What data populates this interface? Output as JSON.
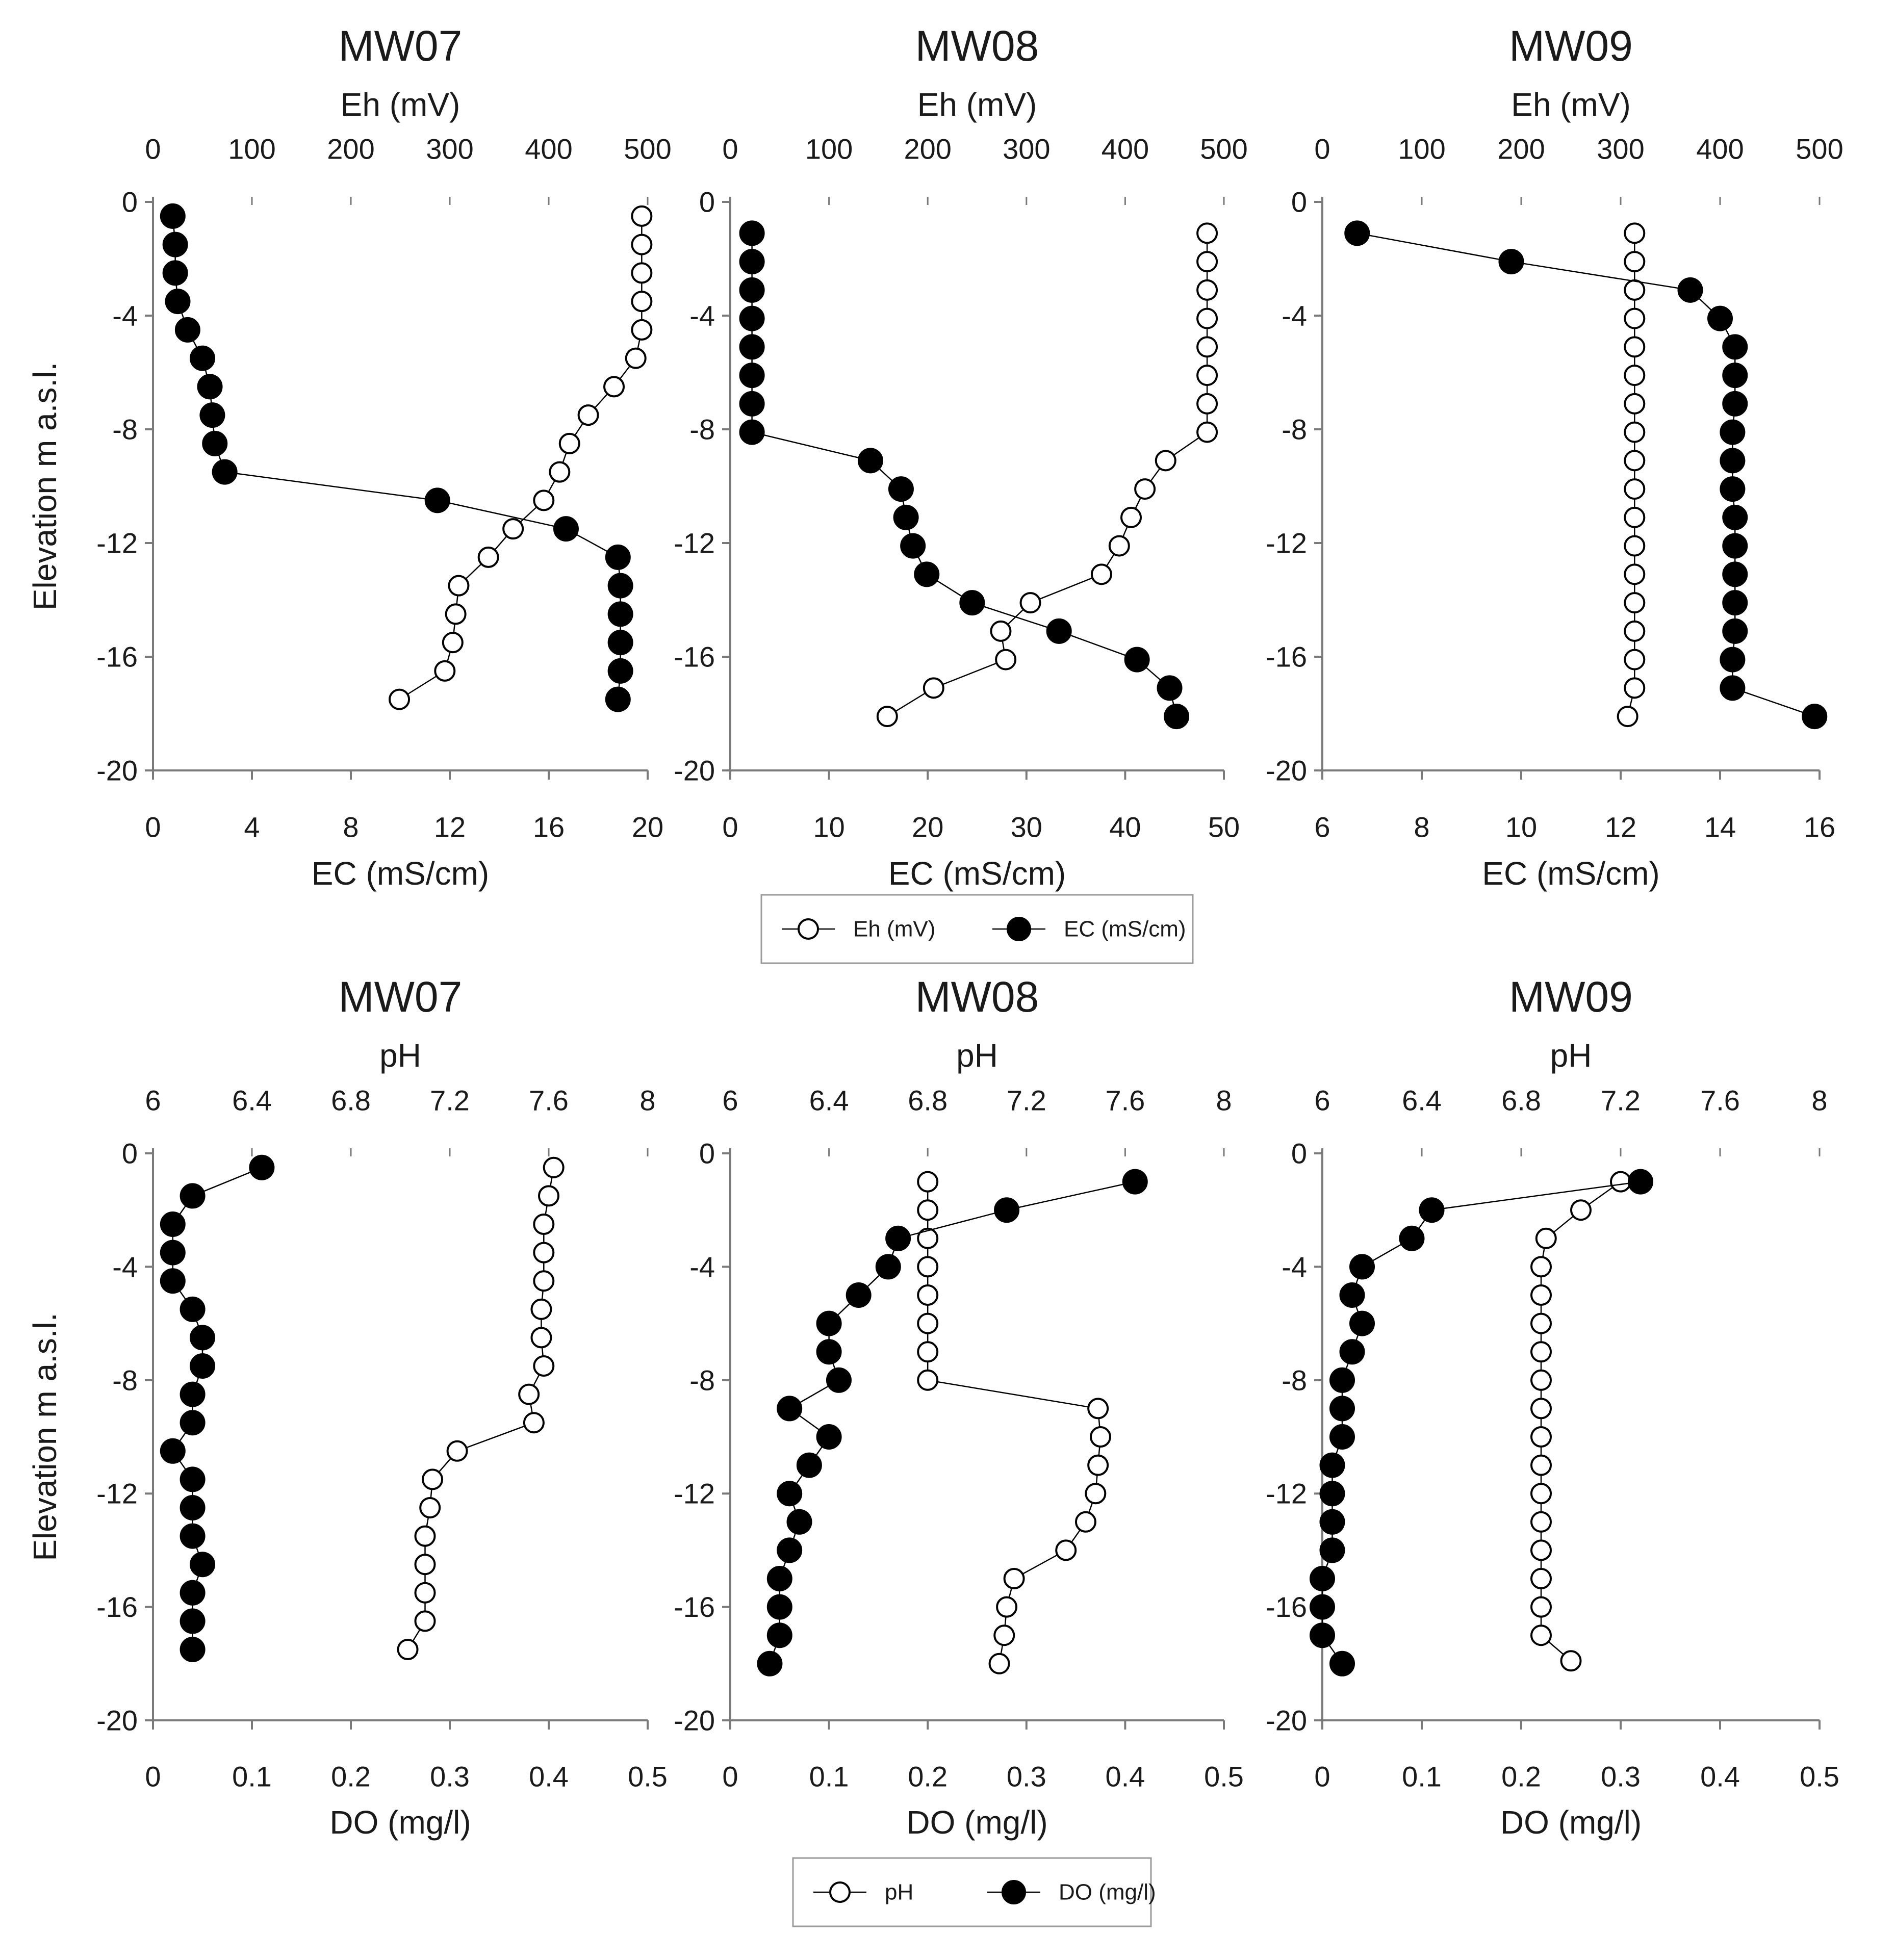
{
  "y_axis_label": "Elevation m a.s.l.",
  "legends": [
    {
      "entries": [
        "Eh (mV)",
        "EC (mS/cm)"
      ]
    },
    {
      "entries": [
        "pH",
        "DO (mg/l)"
      ]
    }
  ],
  "chart_data": [
    {
      "type": "scatter",
      "title": "MW07",
      "row": 1,
      "col": 1,
      "ylabel": "Elevation m a.s.l.",
      "ylim": [
        -20,
        0
      ],
      "yticks": [
        0,
        -4,
        -8,
        -12,
        -16,
        -20
      ],
      "grid": false,
      "top_axis": {
        "label": "Eh (mV)",
        "range": [
          0,
          500
        ],
        "ticks": [
          0,
          100,
          200,
          300,
          400,
          500
        ]
      },
      "bottom_axis": {
        "label": "EC (mS/cm)",
        "range": [
          0,
          20
        ],
        "ticks": [
          0,
          4,
          8,
          12,
          16,
          20
        ]
      },
      "series": [
        {
          "name": "Eh (mV)",
          "axis": "top",
          "marker": "open-circle",
          "x": [
            494,
            494,
            494,
            494,
            494,
            488,
            466,
            440,
            421,
            411,
            395,
            364,
            339,
            309,
            306,
            303,
            295,
            249
          ],
          "y": [
            -0.5,
            -1.5,
            -2.5,
            -3.5,
            -4.5,
            -5.5,
            -6.5,
            -7.5,
            -8.5,
            -9.5,
            -10.5,
            -11.5,
            -12.5,
            -13.5,
            -14.5,
            -15.5,
            -16.5,
            -17.5
          ]
        },
        {
          "name": "EC (mS/cm)",
          "axis": "bottom",
          "marker": "filled-circle",
          "x": [
            0.8,
            0.9,
            0.9,
            1.0,
            1.4,
            2.0,
            2.3,
            2.4,
            2.5,
            2.9,
            11.5,
            16.7,
            18.8,
            18.9,
            18.9,
            18.9,
            18.9,
            18.8
          ],
          "y": [
            -0.5,
            -1.5,
            -2.5,
            -3.5,
            -4.5,
            -5.5,
            -6.5,
            -7.5,
            -8.5,
            -9.5,
            -10.5,
            -11.5,
            -12.5,
            -13.5,
            -14.5,
            -15.5,
            -16.5,
            -17.5
          ]
        }
      ]
    },
    {
      "type": "scatter",
      "title": "MW08",
      "row": 1,
      "col": 2,
      "ylabel": "",
      "ylim": [
        -20,
        0
      ],
      "yticks": [
        0,
        -4,
        -8,
        -12,
        -16,
        -20
      ],
      "grid": false,
      "top_axis": {
        "label": "Eh (mV)",
        "range": [
          0,
          500
        ],
        "ticks": [
          0,
          100,
          200,
          300,
          400,
          500
        ]
      },
      "bottom_axis": {
        "label": "EC (mS/cm)",
        "range": [
          0,
          50
        ],
        "ticks": [
          0,
          10,
          20,
          30,
          40,
          50
        ]
      },
      "series": [
        {
          "name": "Eh (mV)",
          "axis": "top",
          "marker": "open-circle",
          "x": [
            483,
            483,
            483,
            483,
            483,
            483,
            483,
            483,
            441,
            420,
            406,
            394,
            376,
            304,
            274,
            279,
            206,
            159
          ],
          "y": [
            -1.1,
            -2.1,
            -3.1,
            -4.1,
            -5.1,
            -6.1,
            -7.1,
            -8.1,
            -9.1,
            -10.1,
            -11.1,
            -12.1,
            -13.1,
            -14.1,
            -15.1,
            -16.1,
            -17.1,
            -18.1
          ]
        },
        {
          "name": "EC (mS/cm)",
          "axis": "bottom",
          "marker": "filled-circle",
          "x": [
            2.2,
            2.2,
            2.2,
            2.2,
            2.2,
            2.2,
            2.2,
            2.2,
            14.2,
            17.3,
            17.8,
            18.5,
            19.9,
            24.5,
            33.3,
            41.2,
            44.5,
            45.2
          ],
          "y": [
            -1.1,
            -2.1,
            -3.1,
            -4.1,
            -5.1,
            -6.1,
            -7.1,
            -8.1,
            -9.1,
            -10.1,
            -11.1,
            -12.1,
            -13.1,
            -14.1,
            -15.1,
            -16.1,
            -17.1,
            -18.1
          ]
        }
      ]
    },
    {
      "type": "scatter",
      "title": "MW09",
      "row": 1,
      "col": 3,
      "ylabel": "",
      "ylim": [
        -20,
        0
      ],
      "yticks": [
        0,
        -4,
        -8,
        -12,
        -16,
        -20
      ],
      "grid": false,
      "top_axis": {
        "label": "Eh (mV)",
        "range": [
          0,
          500
        ],
        "ticks": [
          0,
          100,
          200,
          300,
          400,
          500
        ]
      },
      "bottom_axis": {
        "label": "EC (mS/cm)",
        "range": [
          6,
          16
        ],
        "ticks": [
          6,
          8,
          10,
          12,
          14,
          16
        ]
      },
      "series": [
        {
          "name": "Eh (mV)",
          "axis": "top",
          "marker": "open-circle",
          "x": [
            314,
            314,
            314,
            314,
            314,
            314,
            314,
            314,
            314,
            314,
            314,
            314,
            314,
            314,
            314,
            314,
            314,
            307
          ],
          "y": [
            -1.1,
            -2.1,
            -3.1,
            -4.1,
            -5.1,
            -6.1,
            -7.1,
            -8.1,
            -9.1,
            -10.1,
            -11.1,
            -12.1,
            -13.1,
            -14.1,
            -15.1,
            -16.1,
            -17.1,
            -18.1
          ]
        },
        {
          "name": "EC (mS/cm)",
          "axis": "bottom",
          "marker": "filled-circle",
          "x": [
            6.7,
            9.8,
            13.4,
            14.0,
            14.3,
            14.3,
            14.3,
            14.25,
            14.25,
            14.25,
            14.3,
            14.3,
            14.3,
            14.3,
            14.3,
            14.25,
            14.25,
            15.9
          ],
          "y": [
            -1.1,
            -2.1,
            -3.1,
            -4.1,
            -5.1,
            -6.1,
            -7.1,
            -8.1,
            -9.1,
            -10.1,
            -11.1,
            -12.1,
            -13.1,
            -14.1,
            -15.1,
            -16.1,
            -17.1,
            -18.1
          ]
        }
      ]
    },
    {
      "type": "scatter",
      "title": "MW07",
      "row": 2,
      "col": 1,
      "ylabel": "Elevation m a.s.l.",
      "ylim": [
        -20,
        0
      ],
      "yticks": [
        0,
        -4,
        -8,
        -12,
        -16,
        -20
      ],
      "grid": false,
      "top_axis": {
        "label": "pH",
        "range": [
          6,
          8
        ],
        "ticks": [
          "6",
          "6.4",
          "6.8",
          "7.2",
          "7.6",
          "8"
        ],
        "tick_values": [
          6,
          6.4,
          6.8,
          7.2,
          7.6,
          8
        ]
      },
      "bottom_axis": {
        "label": "DO (mg/l)",
        "range": [
          0,
          0.5
        ],
        "ticks": [
          "0",
          "0.1",
          "0.2",
          "0.3",
          "0.4",
          "0.5"
        ],
        "tick_values": [
          0,
          0.1,
          0.2,
          0.3,
          0.4,
          0.5
        ]
      },
      "series": [
        {
          "name": "pH",
          "axis": "top",
          "marker": "open-circle",
          "x": [
            7.62,
            7.6,
            7.58,
            7.58,
            7.58,
            7.57,
            7.57,
            7.58,
            7.52,
            7.54,
            7.23,
            7.13,
            7.12,
            7.1,
            7.1,
            7.1,
            7.1,
            7.03
          ],
          "y": [
            -0.5,
            -1.5,
            -2.5,
            -3.5,
            -4.5,
            -5.5,
            -6.5,
            -7.5,
            -8.5,
            -9.5,
            -10.5,
            -11.5,
            -12.5,
            -13.5,
            -14.5,
            -15.5,
            -16.5,
            -17.5
          ]
        },
        {
          "name": "DO (mg/l)",
          "axis": "bottom",
          "marker": "filled-circle",
          "x": [
            0.11,
            0.04,
            0.02,
            0.02,
            0.02,
            0.04,
            0.05,
            0.05,
            0.04,
            0.04,
            0.02,
            0.04,
            0.04,
            0.04,
            0.05,
            0.04,
            0.04,
            0.04
          ],
          "y": [
            -0.5,
            -1.5,
            -2.5,
            -3.5,
            -4.5,
            -5.5,
            -6.5,
            -7.5,
            -8.5,
            -9.5,
            -10.5,
            -11.5,
            -12.5,
            -13.5,
            -14.5,
            -15.5,
            -16.5,
            -17.5
          ]
        }
      ]
    },
    {
      "type": "scatter",
      "title": "MW08",
      "row": 2,
      "col": 2,
      "ylabel": "",
      "ylim": [
        -20,
        0
      ],
      "yticks": [
        0,
        -4,
        -8,
        -12,
        -16,
        -20
      ],
      "grid": false,
      "top_axis": {
        "label": "pH",
        "range": [
          6,
          8
        ],
        "ticks": [
          "6",
          "6.4",
          "6.8",
          "7.2",
          "7.6",
          "8"
        ],
        "tick_values": [
          6,
          6.4,
          6.8,
          7.2,
          7.6,
          8
        ]
      },
      "bottom_axis": {
        "label": "DO (mg/l)",
        "range": [
          0,
          0.5
        ],
        "ticks": [
          "0",
          "0.1",
          "0.2",
          "0.3",
          "0.4",
          "0.5"
        ],
        "tick_values": [
          0,
          0.1,
          0.2,
          0.3,
          0.4,
          0.5
        ]
      },
      "series": [
        {
          "name": "pH",
          "axis": "top",
          "marker": "open-circle",
          "x": [
            6.8,
            6.8,
            6.8,
            6.8,
            6.8,
            6.8,
            6.8,
            6.8,
            7.49,
            7.5,
            7.49,
            7.48,
            7.44,
            7.36,
            7.15,
            7.12,
            7.11,
            7.09
          ],
          "y": [
            -1,
            -2,
            -3,
            -4,
            -5,
            -6,
            -7,
            -8,
            -9,
            -10,
            -11,
            -12,
            -13,
            -14,
            -15,
            -16,
            -17,
            -18
          ]
        },
        {
          "name": "DO (mg/l)",
          "axis": "bottom",
          "marker": "filled-circle",
          "x": [
            0.41,
            0.28,
            0.17,
            0.16,
            0.13,
            0.1,
            0.1,
            0.11,
            0.06,
            0.1,
            0.08,
            0.06,
            0.07,
            0.06,
            0.05,
            0.05,
            0.05,
            0.04
          ],
          "y": [
            -1,
            -2,
            -3,
            -4,
            -5,
            -6,
            -7,
            -8,
            -9,
            -10,
            -11,
            -12,
            -13,
            -14,
            -15,
            -16,
            -17,
            -18
          ]
        }
      ]
    },
    {
      "type": "scatter",
      "title": "MW09",
      "row": 2,
      "col": 3,
      "ylabel": "",
      "ylim": [
        -20,
        0
      ],
      "yticks": [
        0,
        -4,
        -8,
        -12,
        -16,
        -20
      ],
      "grid": false,
      "top_axis": {
        "label": "pH",
        "range": [
          6,
          8
        ],
        "ticks": [
          "6",
          "6.4",
          "6.8",
          "7.2",
          "7.6",
          "8"
        ],
        "tick_values": [
          6,
          6.4,
          6.8,
          7.2,
          7.6,
          8
        ]
      },
      "bottom_axis": {
        "label": "DO (mg/l)",
        "range": [
          0,
          0.5
        ],
        "ticks": [
          "0",
          "0.1",
          "0.2",
          "0.3",
          "0.4",
          "0.5"
        ],
        "tick_values": [
          0,
          0.1,
          0.2,
          0.3,
          0.4,
          0.5
        ]
      },
      "series": [
        {
          "name": "pH",
          "axis": "top",
          "marker": "open-circle",
          "x": [
            7.2,
            7.04,
            6.9,
            6.88,
            6.88,
            6.88,
            6.88,
            6.88,
            6.88,
            6.88,
            6.88,
            6.88,
            6.88,
            6.88,
            6.88,
            6.88,
            6.88,
            7.0
          ],
          "y": [
            -1,
            -2,
            -3,
            -4,
            -5,
            -6,
            -7,
            -8,
            -9,
            -10,
            -11,
            -12,
            -13,
            -14,
            -15,
            -16,
            -17,
            -17.9
          ]
        },
        {
          "name": "DO (mg/l)",
          "axis": "bottom",
          "marker": "filled-circle",
          "x": [
            0.32,
            0.11,
            0.09,
            0.04,
            0.03,
            0.04,
            0.03,
            0.02,
            0.02,
            0.02,
            0.01,
            0.01,
            0.01,
            0.01,
            0,
            0,
            0,
            0.02
          ],
          "y": [
            -1,
            -2,
            -3,
            -4,
            -5,
            -6,
            -7,
            -8,
            -9,
            -10,
            -11,
            -12,
            -13,
            -14,
            -15,
            -16,
            -17,
            -18
          ]
        }
      ]
    }
  ]
}
